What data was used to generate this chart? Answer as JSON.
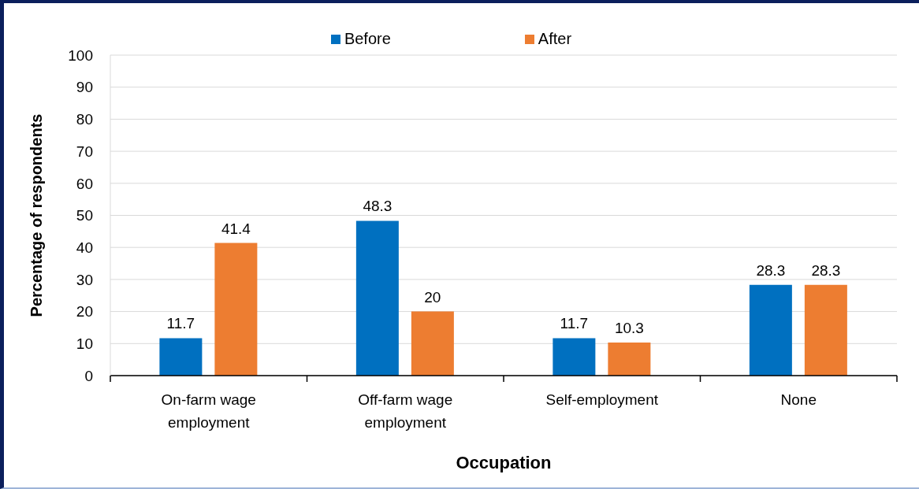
{
  "chart_data": {
    "type": "bar",
    "xlabel": "Occupation",
    "ylabel": "Percentage of respondents",
    "categories": [
      "On-farm wage employment",
      "Off-farm wage employment",
      "Self-employment",
      "None"
    ],
    "series": [
      {
        "name": "Before",
        "color": "#0070c0",
        "values": [
          11.7,
          48.3,
          11.7,
          28.3
        ]
      },
      {
        "name": "After",
        "color": "#ed7d31",
        "values": [
          41.4,
          20,
          10.3,
          28.3
        ]
      }
    ],
    "ylim": [
      0,
      100
    ],
    "yticks": [
      0,
      10,
      20,
      30,
      40,
      50,
      60,
      70,
      80,
      90,
      100
    ],
    "grid": "y",
    "legend": "top",
    "data_labels": true
  }
}
